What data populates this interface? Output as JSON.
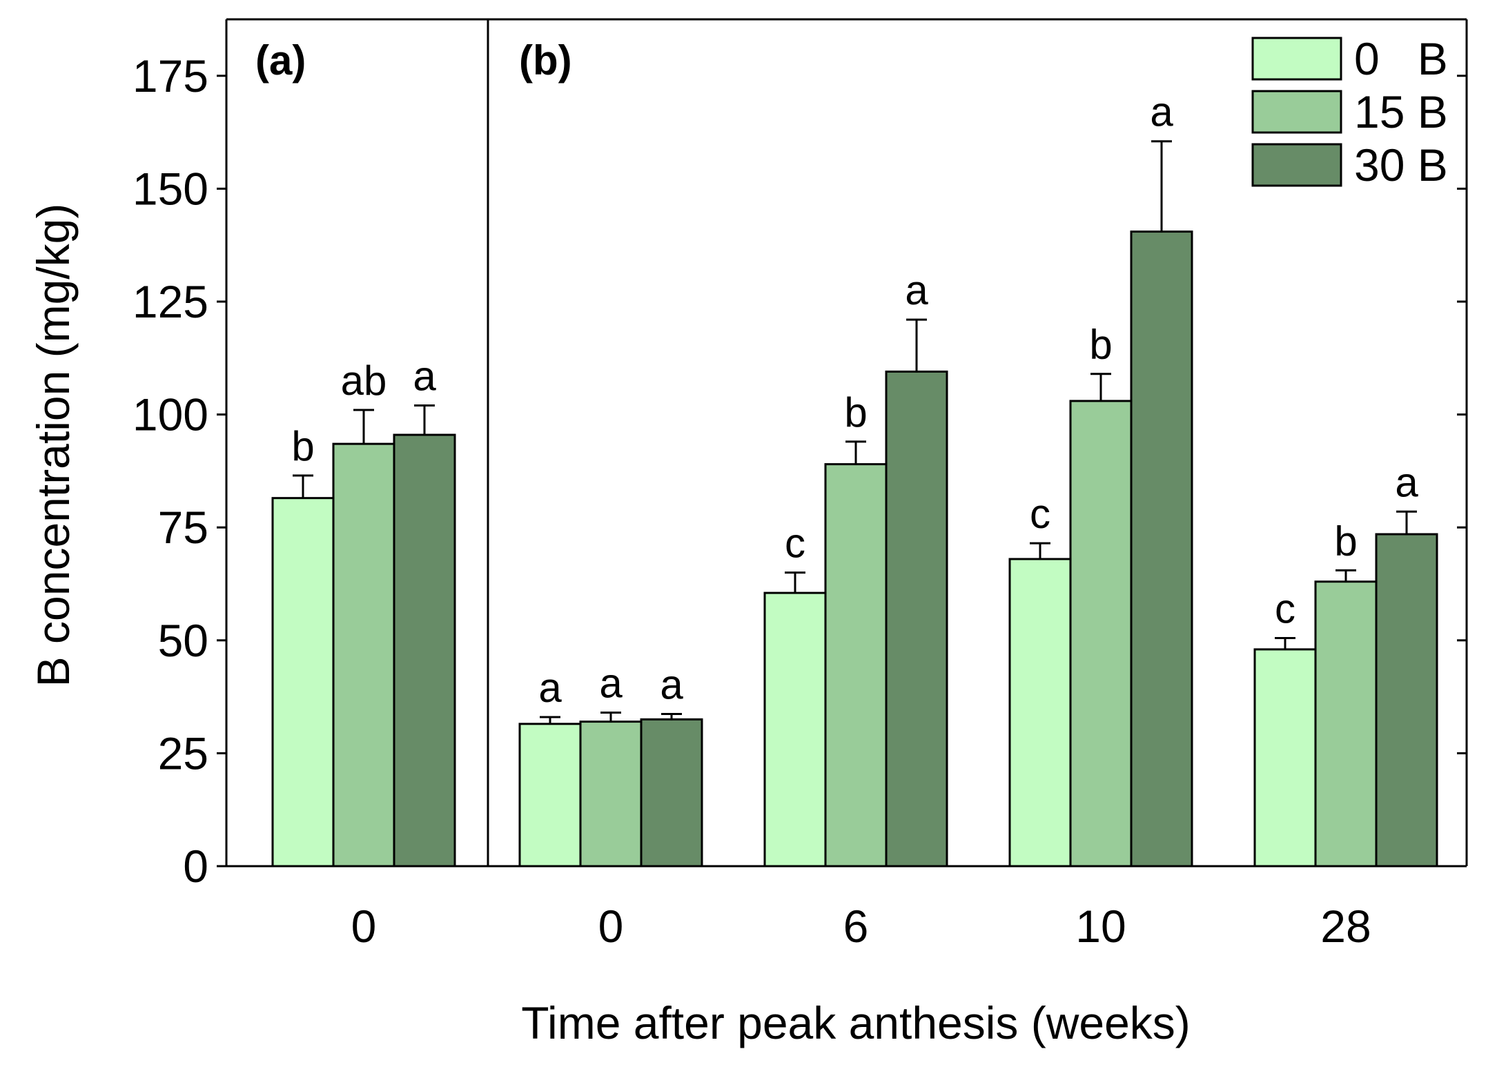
{
  "chart_data": {
    "type": "bar",
    "ylabel": "B concentration (mg/kg)",
    "xlabel": "Time after peak anthesis (weeks)",
    "ylim": [
      0,
      187.5
    ],
    "yticks": [
      0,
      25,
      50,
      75,
      100,
      125,
      150,
      175
    ],
    "legend_position": "top-right",
    "series_names": [
      "0   B",
      "15 B",
      "30 B"
    ],
    "colors": [
      "#c2fcc2",
      "#99cc99",
      "#678c67"
    ],
    "panels": [
      {
        "label": "(a)",
        "groups": [
          {
            "category": "0",
            "values": [
              81.5,
              93.5,
              95.5
            ],
            "errors": [
              5.0,
              7.5,
              6.5
            ],
            "letters": [
              "b",
              "ab",
              "a"
            ]
          }
        ]
      },
      {
        "label": "(b)",
        "groups": [
          {
            "category": "0",
            "values": [
              31.5,
              32.0,
              32.5
            ],
            "errors": [
              1.5,
              2.0,
              1.2
            ],
            "letters": [
              "a",
              "a",
              "a"
            ]
          },
          {
            "category": "6",
            "values": [
              60.5,
              89.0,
              109.5
            ],
            "errors": [
              4.5,
              5.0,
              11.5
            ],
            "letters": [
              "c",
              "b",
              "a"
            ]
          },
          {
            "category": "10",
            "values": [
              68.0,
              103.0,
              140.5
            ],
            "errors": [
              3.5,
              6.0,
              20.0
            ],
            "letters": [
              "c",
              "b",
              "a"
            ]
          },
          {
            "category": "28",
            "values": [
              48.0,
              63.0,
              73.5
            ],
            "errors": [
              2.5,
              2.5,
              5.0
            ],
            "letters": [
              "c",
              "b",
              "a"
            ]
          }
        ]
      }
    ]
  }
}
